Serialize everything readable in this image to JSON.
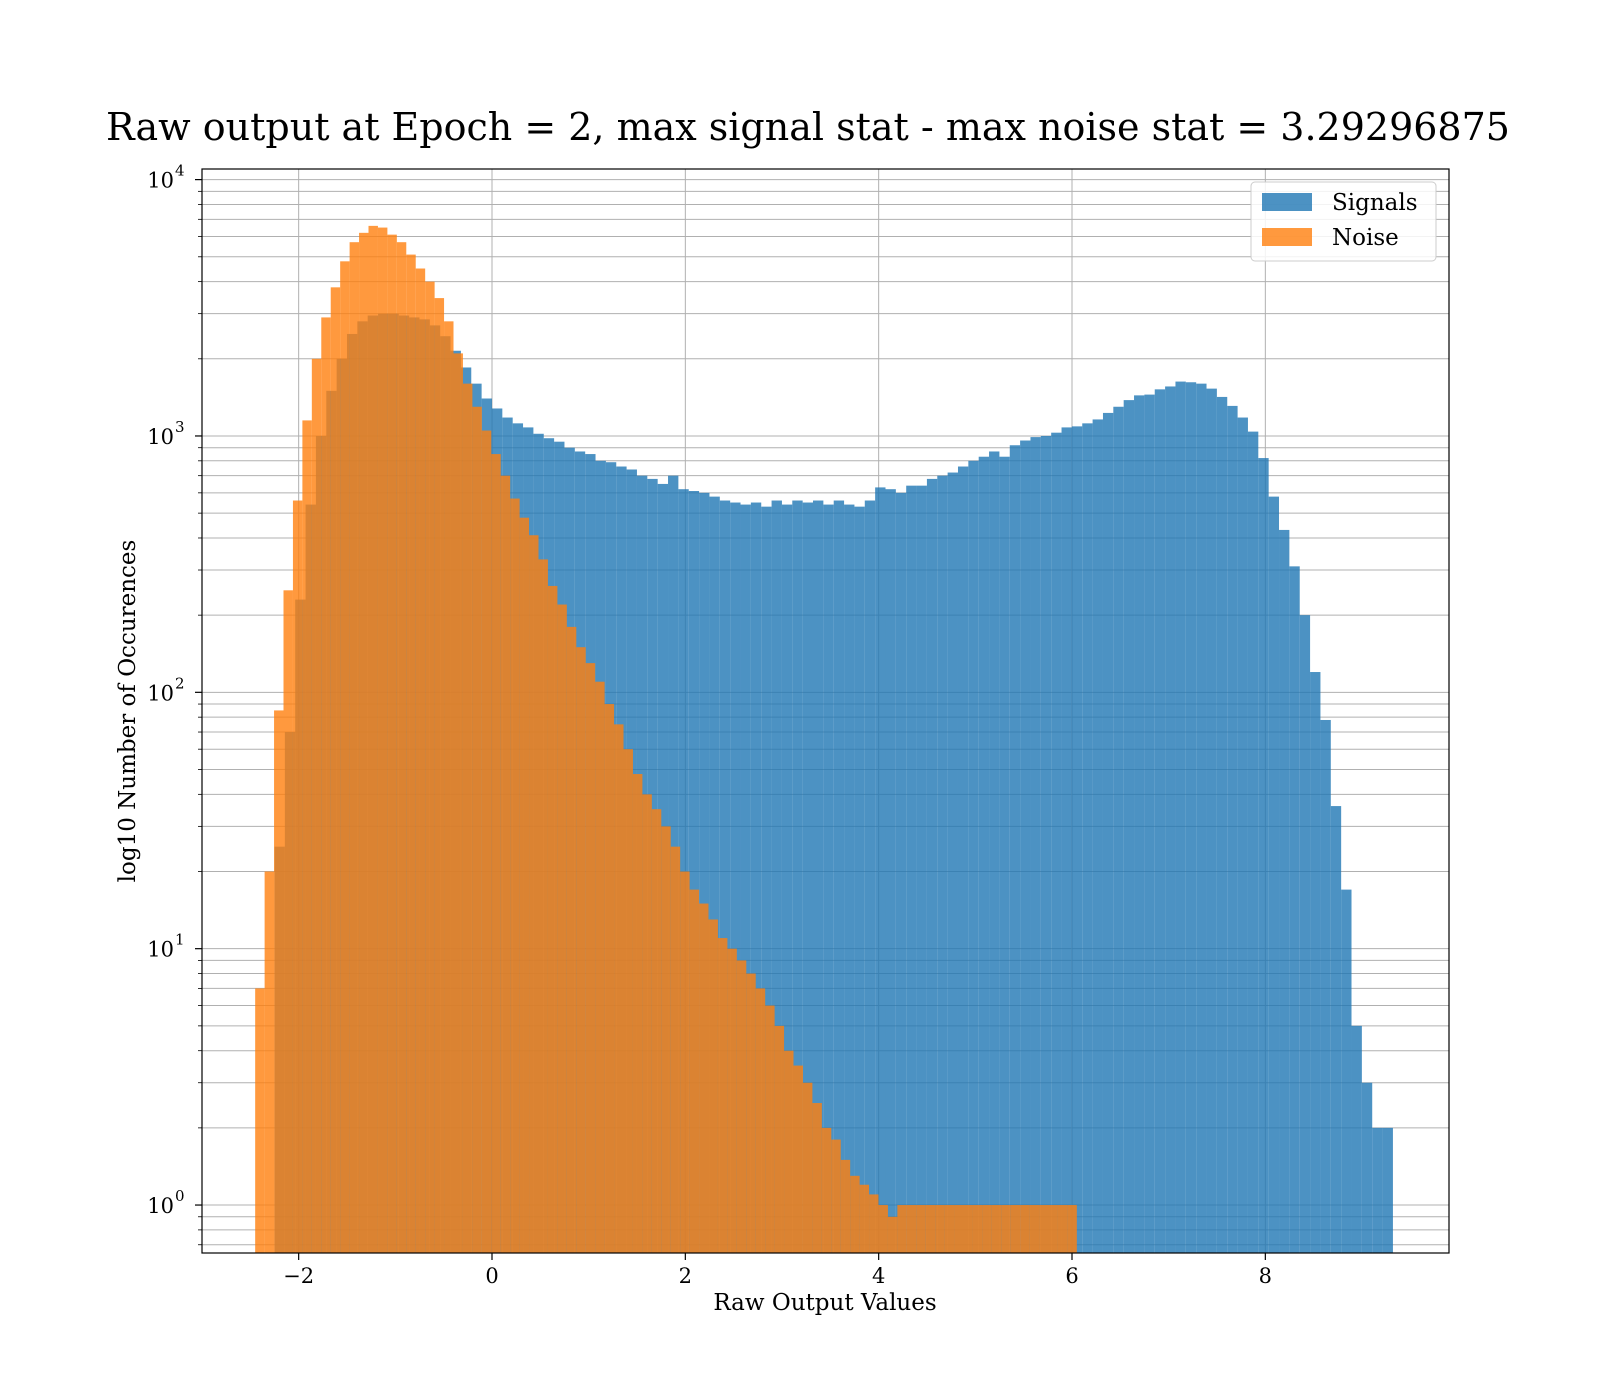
{
  "chart_data": {
    "type": "bar",
    "subtype": "histogram",
    "title": "Raw output at Epoch = 2, max signal stat - max noise stat = 3.29296875",
    "xlabel": "Raw Output Values",
    "ylabel": "log10 Number of Occurences",
    "xlim": [
      -3.0,
      9.9
    ],
    "ylim": [
      0.65,
      11000
    ],
    "yscale": "log",
    "grid": true,
    "legend_position": "top-right",
    "x_ticks": [
      {
        "value": -2,
        "label": "−2"
      },
      {
        "value": 0,
        "label": "0"
      },
      {
        "value": 2,
        "label": "2"
      },
      {
        "value": 4,
        "label": "4"
      },
      {
        "value": 6,
        "label": "6"
      },
      {
        "value": 8,
        "label": "8"
      }
    ],
    "y_ticks": [
      {
        "value": 1,
        "base": "10",
        "exp": "0"
      },
      {
        "value": 10,
        "base": "10",
        "exp": "1"
      },
      {
        "value": 100,
        "base": "10",
        "exp": "2"
      },
      {
        "value": 1000,
        "base": "10",
        "exp": "3"
      },
      {
        "value": 10000,
        "base": "10",
        "exp": "4"
      }
    ],
    "series": [
      {
        "name": "Signals",
        "color": "#1f77b4",
        "bin_start": -2.25,
        "bin_end": 9.32,
        "counts": [
          25,
          70,
          230,
          540,
          1000,
          1500,
          2000,
          2500,
          2800,
          2950,
          3000,
          3000,
          2950,
          2900,
          2850,
          2700,
          2450,
          2150,
          1850,
          1600,
          1400,
          1280,
          1180,
          1120,
          1080,
          1020,
          980,
          950,
          900,
          870,
          850,
          800,
          790,
          760,
          740,
          700,
          680,
          650,
          700,
          620,
          610,
          600,
          580,
          560,
          550,
          540,
          550,
          530,
          560,
          540,
          560,
          550,
          560,
          540,
          560,
          540,
          530,
          560,
          630,
          620,
          600,
          640,
          640,
          680,
          700,
          720,
          760,
          800,
          830,
          870,
          830,
          920,
          960,
          990,
          1000,
          1030,
          1080,
          1090,
          1120,
          1160,
          1230,
          1300,
          1380,
          1440,
          1450,
          1520,
          1560,
          1630,
          1620,
          1600,
          1530,
          1420,
          1310,
          1180,
          1040,
          820,
          580,
          430,
          310,
          200,
          120,
          78,
          36,
          17,
          5,
          3,
          2,
          2
        ]
      },
      {
        "name": "Noise",
        "color": "#ff7f0e",
        "bin_start": -2.45,
        "bin_end": 6.05,
        "counts": [
          7,
          20,
          85,
          250,
          560,
          1150,
          2000,
          2900,
          3800,
          4800,
          5700,
          6200,
          6600,
          6500,
          6100,
          5700,
          5100,
          4500,
          4000,
          3450,
          2800,
          2100,
          1600,
          1300,
          1050,
          850,
          700,
          570,
          480,
          410,
          330,
          260,
          220,
          180,
          150,
          130,
          110,
          90,
          75,
          60,
          48,
          40,
          35,
          30,
          25,
          20,
          17,
          15,
          13,
          11,
          10,
          9,
          8,
          7,
          6,
          5,
          4,
          3.5,
          3,
          2.5,
          2,
          1.8,
          1.5,
          1.3,
          1.2,
          1.1,
          1,
          0.9,
          1,
          1,
          1,
          1,
          1,
          1,
          1,
          1,
          1,
          1,
          1,
          1,
          1,
          1,
          1,
          1,
          1,
          1,
          1
        ]
      }
    ]
  }
}
